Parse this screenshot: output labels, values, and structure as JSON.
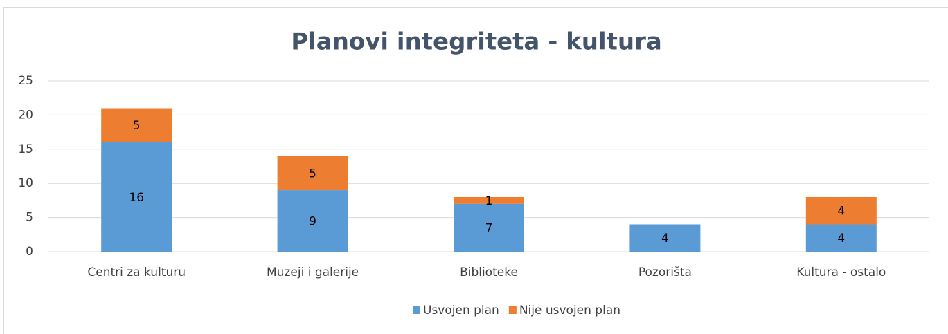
{
  "chart_data": {
    "type": "stacked_bar",
    "title": "Planovi integriteta - kultura",
    "categories": [
      "Centri za kulturu",
      "Muzeji i galerije",
      "Biblioteke",
      "Pozorišta",
      "Kultura - ostalo"
    ],
    "series": [
      {
        "name": "Usvojen plan",
        "color": "#5b9bd5",
        "values": [
          16,
          9,
          7,
          4,
          4
        ]
      },
      {
        "name": "Nije usvojen plan",
        "color": "#ed7d31",
        "values": [
          5,
          5,
          1,
          0,
          4
        ]
      }
    ],
    "ylim": [
      0,
      25
    ],
    "yticks": [
      0,
      5,
      10,
      15,
      20,
      25
    ],
    "grid": true,
    "legend": "bottom"
  }
}
